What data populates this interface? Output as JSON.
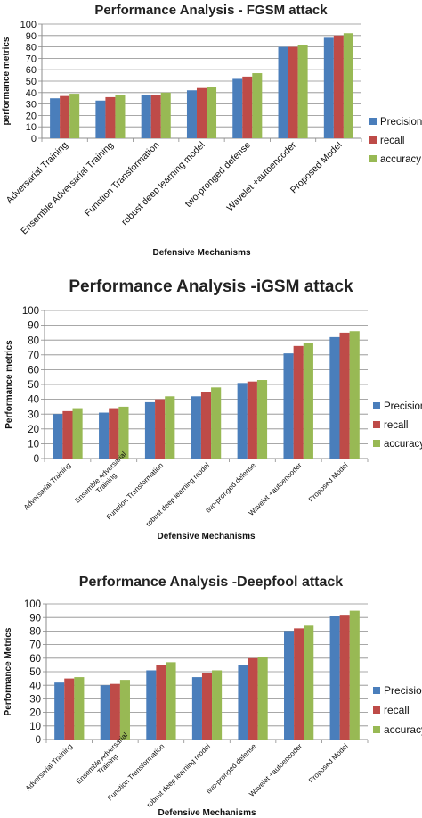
{
  "chart_data": [
    {
      "type": "bar",
      "title": "Performance Analysis - FGSM attack",
      "xlabel": "Defensive Mechanisms",
      "ylabel": "performance metrics",
      "ylim": [
        0,
        100
      ],
      "ytick_step": 10,
      "grid": true,
      "legend_position": "right",
      "categories": [
        "Adversarial Training",
        "Ensemble Adversarial Training",
        "Function Transformation",
        "robust deep learning model",
        "two-pronged defense",
        "Wavelet +autoencoder",
        "Proposed Model"
      ],
      "category_lines": [
        [
          "Adversarial Training"
        ],
        [
          "Ensemble Adversarial Training"
        ],
        [
          "Function Transformation"
        ],
        [
          "robust deep learning model"
        ],
        [
          "two-pronged defense"
        ],
        [
          "Wavelet +autoencoder"
        ],
        [
          "Proposed Model"
        ]
      ],
      "series": [
        {
          "name": "Precision",
          "color": "#4a7ebb",
          "values": [
            35,
            33,
            38,
            42,
            52,
            80,
            88
          ]
        },
        {
          "name": "recall",
          "color": "#be4b48",
          "values": [
            37,
            36,
            38,
            44,
            54,
            80,
            90
          ]
        },
        {
          "name": "accuracy",
          "color": "#98b954",
          "values": [
            39,
            38,
            40,
            45,
            57,
            82,
            92
          ]
        }
      ]
    },
    {
      "type": "bar",
      "title": "Performance Analysis -iGSM attack",
      "xlabel": "Defensive Mechanisms",
      "ylabel": "Performance metrics",
      "ylim": [
        0,
        100
      ],
      "ytick_step": 10,
      "grid": true,
      "legend_position": "right",
      "categories": [
        "Adversarial Training",
        "Ensemble Adversarial Training",
        "Function Transformation",
        "robust deep learning model",
        "two-pronged defense",
        "Wavelet +autoencoder",
        "Proposed Model"
      ],
      "category_lines": [
        [
          "Adversarial Training"
        ],
        [
          "Ensemble Adversarial",
          "Training"
        ],
        [
          "Function Transformation"
        ],
        [
          "robust deep learning model"
        ],
        [
          "two-pronged defense"
        ],
        [
          "Wavelet +autoencoder"
        ],
        [
          "Proposed Model"
        ]
      ],
      "series": [
        {
          "name": "Precision",
          "color": "#4a7ebb",
          "values": [
            30,
            31,
            38,
            42,
            51,
            71,
            82
          ]
        },
        {
          "name": "recall",
          "color": "#be4b48",
          "values": [
            32,
            34,
            40,
            45,
            52,
            76,
            85
          ]
        },
        {
          "name": "accuracy",
          "color": "#98b954",
          "values": [
            34,
            35,
            42,
            48,
            53,
            78,
            86
          ]
        }
      ]
    },
    {
      "type": "bar",
      "title": "Performance Analysis -Deepfool attack",
      "xlabel": "Defensive Mechanisms",
      "ylabel": "Performance Metrics",
      "ylim": [
        0,
        100
      ],
      "ytick_step": 10,
      "grid": true,
      "legend_position": "right",
      "categories": [
        "Adversarial Training",
        "Ensemble Adversarial Training",
        "Function Transformation",
        "robust deep learning model",
        "two-pronged defense",
        "Wavelet +autoencoder",
        "Proposed Model"
      ],
      "category_lines": [
        [
          "Adversarial Training"
        ],
        [
          "Ensemble Adversarial",
          "Training"
        ],
        [
          "Function Transformation"
        ],
        [
          "robust deep learning model"
        ],
        [
          "two-pronged defense"
        ],
        [
          "Wavelet +autoencoder"
        ],
        [
          "Proposed Model"
        ]
      ],
      "series": [
        {
          "name": "Precision",
          "color": "#4a7ebb",
          "values": [
            42,
            40,
            51,
            46,
            55,
            80,
            91
          ]
        },
        {
          "name": "recall",
          "color": "#be4b48",
          "values": [
            45,
            41,
            55,
            49,
            60,
            82,
            92
          ]
        },
        {
          "name": "accuracy",
          "color": "#98b954",
          "values": [
            46,
            44,
            57,
            51,
            61,
            84,
            95
          ]
        }
      ]
    }
  ]
}
